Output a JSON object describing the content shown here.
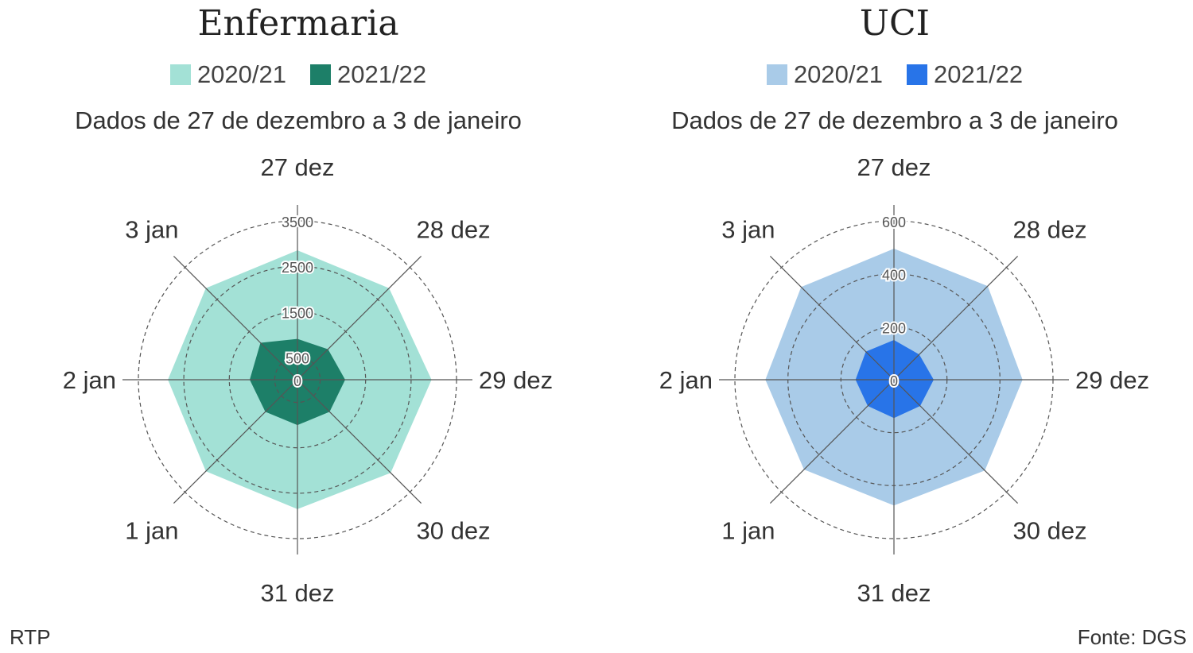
{
  "chart_data": [
    {
      "type": "radar",
      "title": "Enfermaria",
      "subtitle": "Dados de 27 de dezembro a 3 de janeiro",
      "categories": [
        "27 dez",
        "28 dez",
        "29 dez",
        "30 dez",
        "31 dez",
        "1 jan",
        "2 jan",
        "3 jan"
      ],
      "rmax": 3500,
      "ticks": [
        0,
        500,
        1500,
        2500,
        3500
      ],
      "series": [
        {
          "name": "2020/21",
          "color": "#a3e1d6",
          "values": [
            2850,
            2850,
            2950,
            2900,
            2850,
            2850,
            2850,
            2850
          ]
        },
        {
          "name": "2021/22",
          "color": "#1d7f68",
          "values": [
            900,
            950,
            1050,
            1000,
            1000,
            1000,
            1050,
            1150
          ]
        }
      ]
    },
    {
      "type": "radar",
      "title": "UCI",
      "subtitle": "Dados de 27 de dezembro a 3 de janeiro",
      "categories": [
        "27 dez",
        "28 dez",
        "29 dez",
        "30 dez",
        "31 dez",
        "1 jan",
        "2 jan",
        "3 jan"
      ],
      "rmax": 600,
      "ticks": [
        0,
        200,
        400,
        600
      ],
      "series": [
        {
          "name": "2020/21",
          "color": "#a9cbe8",
          "values": [
            495,
            500,
            485,
            485,
            475,
            480,
            485,
            495
          ]
        },
        {
          "name": "2021/22",
          "color": "#2874e8",
          "values": [
            150,
            135,
            150,
            140,
            145,
            140,
            145,
            150
          ]
        }
      ]
    }
  ],
  "footer": {
    "source_left": "RTP",
    "source_right": "Fonte: DGS"
  }
}
